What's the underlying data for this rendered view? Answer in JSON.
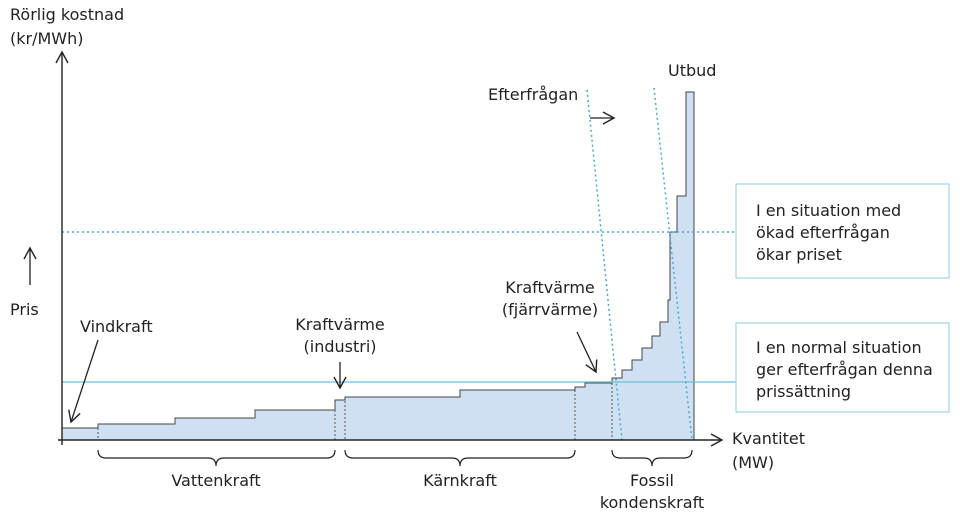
{
  "axes": {
    "y_label": [
      "Rörlig kostnad",
      "(kr/MWh)"
    ],
    "price": "Pris",
    "x_label": [
      "Kvantitet",
      "(MW)"
    ]
  },
  "curves": {
    "supply": "Utbud",
    "demand": "Efterfrågan"
  },
  "annotations": {
    "wind": "Vindkraft",
    "chp_industry": [
      "Kraftvärme",
      "(industri)"
    ],
    "chp_district": [
      "Kraftvärme",
      "(fjärrvärme)"
    ]
  },
  "groups": {
    "hydro": "Vattenkraft",
    "nuclear": "Kärnkraft",
    "fossil": [
      "Fossil",
      "kondenskraft"
    ]
  },
  "boxes": {
    "high": [
      "I en situation med",
      "ökad efterfrågan",
      "ökar priset"
    ],
    "normal": [
      "I en normal situation",
      "ger efterfrågan denna",
      "prissättning"
    ]
  }
}
